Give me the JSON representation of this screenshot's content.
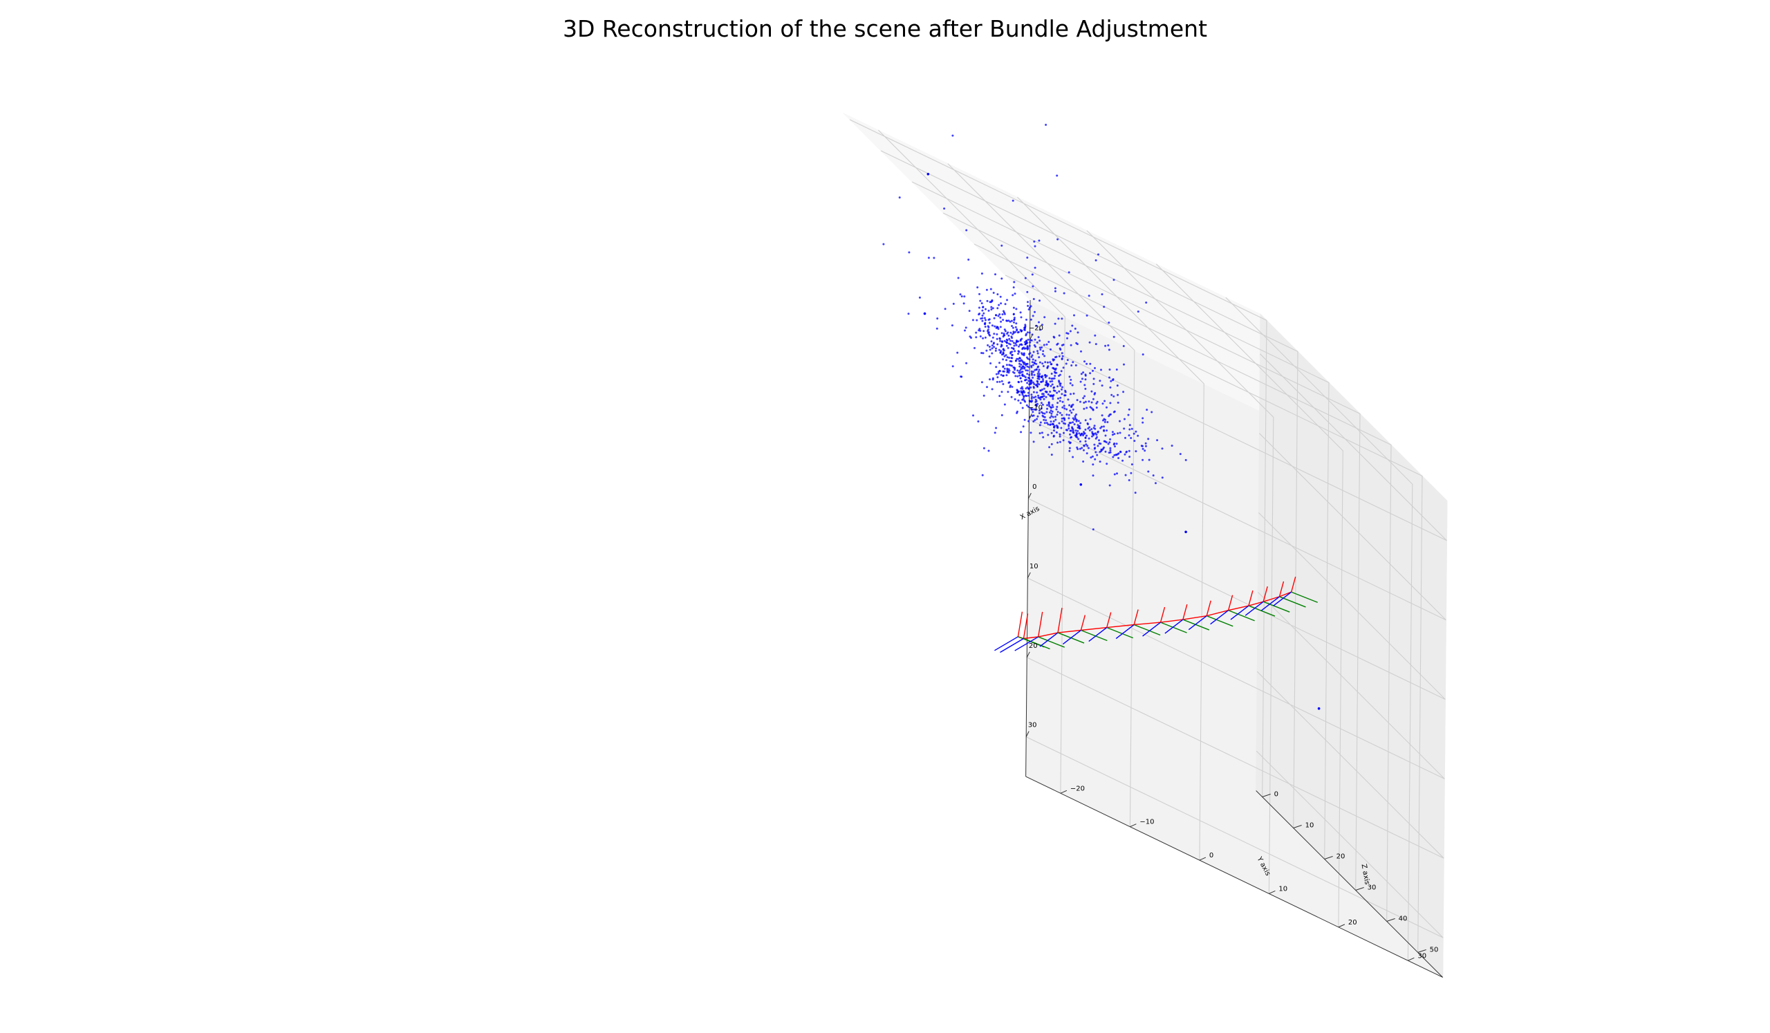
{
  "chart_data": {
    "type": "scatter",
    "projection": "3d",
    "title": "3D Reconstruction of the scene after Bundle Adjustment",
    "xlabel": "X axis",
    "ylabel": "Y axis",
    "zlabel": "Z axis",
    "x_ticks": [
      "−20",
      "−10",
      "0",
      "10",
      "20",
      "30"
    ],
    "y_ticks": [
      "−20",
      "−10",
      "0",
      "10",
      "20",
      "30"
    ],
    "z_ticks": [
      "0",
      "10",
      "20",
      "30",
      "40",
      "50"
    ],
    "xlim": [
      -25,
      35
    ],
    "ylim": [
      -25,
      35
    ],
    "zlim": [
      -2,
      58
    ],
    "grid": true,
    "series": [
      {
        "kind": "points",
        "color": "#0000ff",
        "clusters": [
          {
            "cx": -7.5,
            "cy": -2,
            "sx": 2.2,
            "sy": 3.0,
            "n": 260
          },
          {
            "cx": -3,
            "cy": 1,
            "sx": 2.0,
            "sy": 2.5,
            "n": 240
          },
          {
            "cx": 0.5,
            "cy": 7,
            "sx": 1.4,
            "sy": 4.2,
            "n": 220
          },
          {
            "cx": -5,
            "cy": 5,
            "sx": 3.5,
            "sy": 5.0,
            "n": 200
          },
          {
            "cx": -8,
            "cy": 2,
            "sx": 7.5,
            "sy": 7.0,
            "n": 170
          },
          {
            "cx": -2,
            "cy": 14,
            "sx": 2.6,
            "sy": 4.0,
            "n": 80
          }
        ],
        "outliers": [
          {
            "x": -22.9,
            "y": -13.7,
            "z": 0
          },
          {
            "x": -5.2,
            "y": -14.0,
            "z": 0
          },
          {
            "x": 20.5,
            "y": 43.0,
            "z": 0
          },
          {
            "x": 6.4,
            "y": 23.7,
            "z": 0
          },
          {
            "x": 6.8,
            "y": 8.6,
            "z": 0
          }
        ]
      },
      {
        "kind": "camera-trajectory",
        "line_color": "#ff0000",
        "axis_colors": {
          "x": "#ff0000",
          "y": "#008000",
          "z": "#0000ff"
        },
        "cameras": [
          {
            "x": 24.0,
            "y": -12.8,
            "z": 28
          },
          {
            "x": 23.9,
            "y": -12.0,
            "z": 28
          },
          {
            "x": 22.8,
            "y": -9.9,
            "z": 28
          },
          {
            "x": 21.1,
            "y": -7.1,
            "z": 28
          },
          {
            "x": 19.4,
            "y": -3.8,
            "z": 28
          },
          {
            "x": 17.5,
            "y": -0.1,
            "z": 28
          },
          {
            "x": 15.5,
            "y": 3.8,
            "z": 28
          },
          {
            "x": 13.6,
            "y": 7.6,
            "z": 28
          },
          {
            "x": 11.9,
            "y": 10.8,
            "z": 28
          },
          {
            "x": 10.0,
            "y": 14.2,
            "z": 28
          },
          {
            "x": 8.0,
            "y": 17.3,
            "z": 28
          },
          {
            "x": 6.2,
            "y": 20.2,
            "z": 28
          },
          {
            "x": 4.8,
            "y": 22.3,
            "z": 28
          },
          {
            "x": 3.2,
            "y": 24.6,
            "z": 28
          },
          {
            "x": 1.9,
            "y": 26.3,
            "z": 28
          }
        ]
      }
    ]
  }
}
